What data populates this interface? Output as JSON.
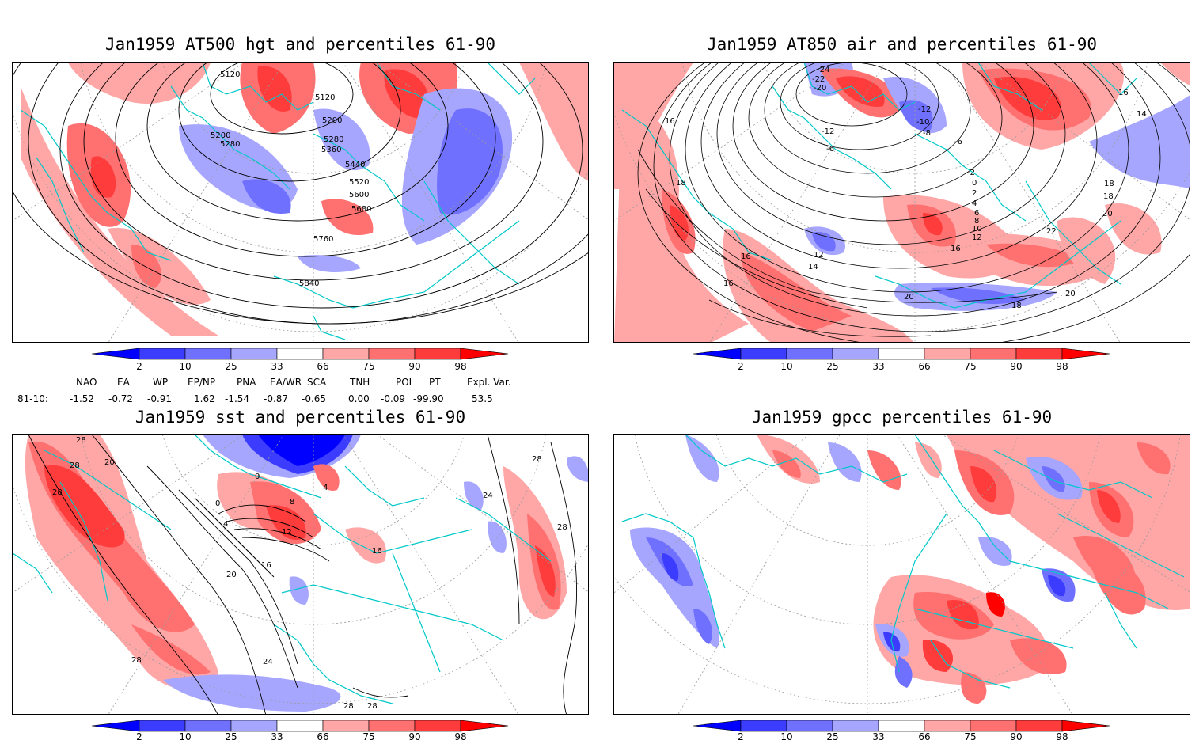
{
  "panels": [
    {
      "title": "Jan1959 AT500 hgt and percentiles 61-90",
      "contour_labels": [
        "5120",
        "5120",
        "5200",
        "5200",
        "5280",
        "5280",
        "5360",
        "5440",
        "5520",
        "5600",
        "5680",
        "5760",
        "5840"
      ]
    },
    {
      "title": "Jan1959 AT850 air and percentiles 61-90",
      "contour_labels": [
        "-24",
        "-22",
        "-20",
        "-12",
        "-12",
        "-10",
        "-8",
        "-6",
        "-6",
        "-2",
        "0",
        "2",
        "4",
        "6",
        "8",
        "10",
        "12",
        "12",
        "14",
        "14",
        "16",
        "16",
        "16",
        "16",
        "16",
        "18",
        "18",
        "18",
        "18",
        "20",
        "20",
        "20",
        "22"
      ]
    },
    {
      "title": "Jan1959 sst and percentiles 61-90",
      "contour_labels": [
        "28",
        "28",
        "28",
        "20",
        "0",
        "0",
        "4",
        "8",
        "12",
        "16",
        "20",
        "24",
        "24",
        "28",
        "28",
        "28",
        "16",
        "4"
      ]
    },
    {
      "title": "Jan1959 gpcc percentiles 61-90",
      "contour_labels": []
    }
  ],
  "colorbar": {
    "labels": [
      "2",
      "10",
      "25",
      "33",
      "66",
      "75",
      "90",
      "98"
    ],
    "colors": [
      "#0000ff",
      "#3c3cff",
      "#7070ff",
      "#a6a6ff",
      "#ffffff",
      "#ffa6a6",
      "#ff7070",
      "#ff3c3c",
      "#ff0000"
    ]
  },
  "teleconnections": {
    "headers": [
      "NAO",
      "EA",
      "WP",
      "EP/NP",
      "PNA",
      "EA/WR",
      "SCA",
      "TNH",
      "POL",
      "PT",
      "Expl. Var."
    ],
    "row_label": "81-10:",
    "values": [
      "-1.52",
      "-0.72",
      "-0.91",
      "1.62",
      "-1.54",
      "-0.87",
      "-0.65",
      "0.00",
      "-0.09",
      "-99.90",
      "53.5"
    ]
  },
  "map_colors": {
    "coastline": "#00c8c8",
    "graticule": "#9a9a9a",
    "red_light": "#ffa6a6",
    "red_mid": "#ff7070",
    "red_dark": "#ff3c3c",
    "red_full": "#ff0000",
    "blue_light": "#a6a6ff",
    "blue_mid": "#7070ff",
    "blue_dark": "#3c3cff",
    "blue_full": "#0000ff"
  }
}
